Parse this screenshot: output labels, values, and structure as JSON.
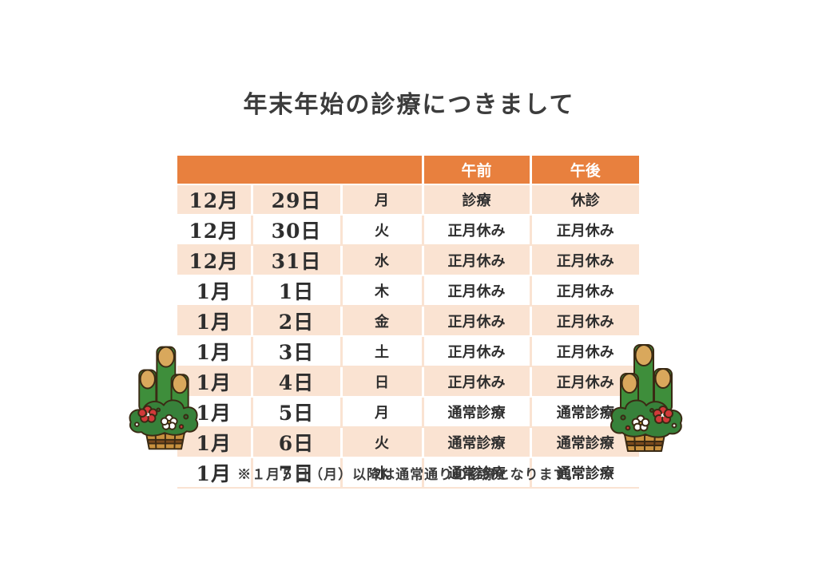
{
  "page": {
    "title": "年末年始の診療につきまして",
    "note": "※１月５日（月）以降は通常通りの診療となります。"
  },
  "table": {
    "header": {
      "blank": "",
      "am": "午前",
      "pm": "午後"
    },
    "rows": [
      {
        "month": "12月",
        "day": "29日",
        "weekday": "月",
        "am": "診療",
        "am_color": "black",
        "pm": "休診",
        "pm_color": "red"
      },
      {
        "month": "12月",
        "day": "30日",
        "weekday": "火",
        "am": "正月休み",
        "am_color": "red",
        "pm": "正月休み",
        "pm_color": "red"
      },
      {
        "month": "12月",
        "day": "31日",
        "weekday": "水",
        "am": "正月休み",
        "am_color": "red",
        "pm": "正月休み",
        "pm_color": "red"
      },
      {
        "month": "1月",
        "day": "1日",
        "weekday": "木",
        "am": "正月休み",
        "am_color": "red",
        "pm": "正月休み",
        "pm_color": "red"
      },
      {
        "month": "1月",
        "day": "2日",
        "weekday": "金",
        "am": "正月休み",
        "am_color": "red",
        "pm": "正月休み",
        "pm_color": "red"
      },
      {
        "month": "1月",
        "day": "3日",
        "weekday": "土",
        "am": "正月休み",
        "am_color": "red",
        "pm": "正月休み",
        "pm_color": "red"
      },
      {
        "month": "1月",
        "day": "4日",
        "weekday": "日",
        "am": "正月休み",
        "am_color": "red",
        "pm": "正月休み",
        "pm_color": "red"
      },
      {
        "month": "1月",
        "day": "5日",
        "weekday": "月",
        "am": "通常診療",
        "am_color": "black",
        "pm": "通常診療",
        "pm_color": "black"
      },
      {
        "month": "1月",
        "day": "6日",
        "weekday": "火",
        "am": "通常診療",
        "am_color": "black",
        "pm": "通常診療",
        "pm_color": "black"
      },
      {
        "month": "1月",
        "day": "7日",
        "weekday": "水",
        "am": "通常診療",
        "am_color": "black",
        "pm": "通常診療",
        "pm_color": "black"
      }
    ]
  },
  "colors": {
    "header_bg": "#E8803E",
    "row_alt_bg": "#FAE3D2",
    "holiday_red": "#CE3A3A",
    "text_dark": "#3C3C3C"
  },
  "decorations": {
    "left": "kadomatsu-illustration",
    "right": "kadomatsu-illustration"
  }
}
